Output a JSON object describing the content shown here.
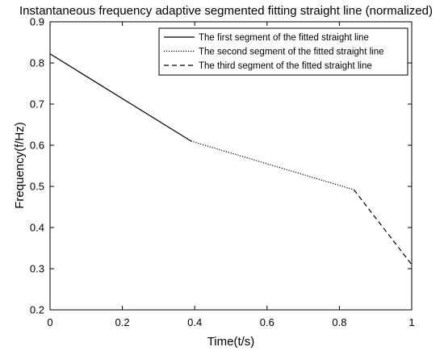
{
  "chart_data": {
    "type": "line",
    "title": "Instantaneous frequency adaptive segmented fitting straight line (normalized)",
    "xlabel": "Time(t/s)",
    "ylabel": "Frequency(f/Hz)",
    "xlim": [
      0,
      1
    ],
    "ylim": [
      0.2,
      0.9
    ],
    "xticks": [
      0,
      0.2,
      0.4,
      0.6,
      0.8,
      1
    ],
    "xtick_labels": [
      "0",
      "0.2",
      "0.4",
      "0.6",
      "0.8",
      "1"
    ],
    "yticks": [
      0.2,
      0.3,
      0.4,
      0.5,
      0.6,
      0.7,
      0.8,
      0.9
    ],
    "ytick_labels": [
      "0.2",
      "0.3",
      "0.4",
      "0.5",
      "0.6",
      "0.7",
      "0.8",
      "0.9"
    ],
    "grid": false,
    "legend_position": "top-right",
    "series": [
      {
        "name": "The first segment of the fitted straight line",
        "style": "solid",
        "color": "#000000",
        "x": [
          0,
          0.39
        ],
        "y": [
          0.822,
          0.61
        ]
      },
      {
        "name": "The second segment of the fitted straight line",
        "style": "dotted",
        "color": "#000000",
        "x": [
          0.39,
          0.84
        ],
        "y": [
          0.61,
          0.492
        ]
      },
      {
        "name": "The third segment of the fitted straight line",
        "style": "dashed",
        "color": "#000000",
        "x": [
          0.84,
          1.0
        ],
        "y": [
          0.492,
          0.31
        ]
      }
    ]
  }
}
